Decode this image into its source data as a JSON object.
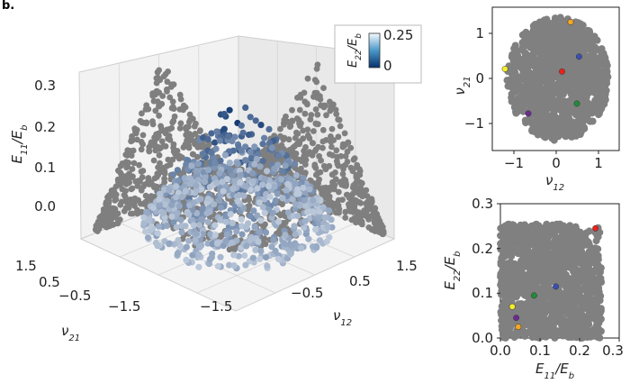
{
  "figure": {
    "panel_letter": "b."
  },
  "chart_data": [
    {
      "id": "surface3d",
      "type": "scatter",
      "projection": "3d",
      "x_axis": {
        "label_sym": "ν",
        "label_sub": "12",
        "ticks": [
          "−1.5",
          "−0.5",
          "0.5",
          "1.5"
        ],
        "range": [
          -1.5,
          1.5
        ]
      },
      "y_axis": {
        "label_sym": "ν",
        "label_sub": "21",
        "ticks": [
          "−1.5",
          "−0.5",
          "0.5",
          "1.5"
        ],
        "range": [
          -1.5,
          1.5
        ]
      },
      "z_axis": {
        "label_sym": "E",
        "label_sub": "11",
        "label_tail": "/E",
        "label_tail_sub": "b",
        "ticks": [
          "0.0",
          "0.1",
          "0.2",
          "0.3"
        ],
        "range": [
          0,
          0.3
        ]
      },
      "colorbar": {
        "label_sym": "E",
        "label_sub": "22",
        "label_tail": "/E",
        "label_tail_sub": "b",
        "max_label": "0.25",
        "min_label": "0",
        "range": [
          0,
          0.25
        ]
      },
      "projection_color": "#7f7f7f",
      "colormap": [
        "#f7fbff",
        "#08306b"
      ],
      "grid": true
    },
    {
      "id": "nu-scatter",
      "type": "scatter",
      "x_axis": {
        "label_sym": "ν",
        "label_sub": "12",
        "ticks": [
          "−1",
          "0",
          "1"
        ],
        "range": [
          -1.5,
          1.5
        ]
      },
      "y_axis": {
        "label_sym": "ν",
        "label_sub": "21",
        "ticks": [
          "−1",
          "0",
          "1"
        ],
        "range": [
          -1.45,
          1.45
        ]
      },
      "cloud_color": "#808080",
      "highlight_points": [
        {
          "x": 0.35,
          "y": 1.15,
          "color": "#f5a623"
        },
        {
          "x": 0.55,
          "y": 0.45,
          "color": "#3b4fb0"
        },
        {
          "x": 0.15,
          "y": 0.15,
          "color": "#e8221b"
        },
        {
          "x": -1.2,
          "y": 0.2,
          "color": "#f4ef2a"
        },
        {
          "x": 0.5,
          "y": -0.5,
          "color": "#228b3b"
        },
        {
          "x": -0.65,
          "y": -0.7,
          "color": "#6a2d8f"
        }
      ]
    },
    {
      "id": "E-scatter",
      "type": "scatter",
      "x_axis": {
        "label_sym": "E",
        "label_sub": "11",
        "label_tail": "/E",
        "label_tail_sub": "b",
        "ticks": [
          "0.0",
          "0.1",
          "0.2",
          "0.3"
        ],
        "range": [
          0,
          0.3
        ]
      },
      "y_axis": {
        "label_sym": "E",
        "label_sub": "22",
        "label_tail": "/E",
        "label_tail_sub": "b",
        "ticks": [
          "0.0",
          "0.1",
          "0.2",
          "0.3"
        ],
        "range": [
          0,
          0.3
        ]
      },
      "cloud_color": "#808080",
      "highlight_points": [
        {
          "x": 0.24,
          "y": 0.245,
          "color": "#e8221b"
        },
        {
          "x": 0.14,
          "y": 0.115,
          "color": "#3b4fb0"
        },
        {
          "x": 0.085,
          "y": 0.095,
          "color": "#228b3b"
        },
        {
          "x": 0.03,
          "y": 0.07,
          "color": "#f4ef2a"
        },
        {
          "x": 0.04,
          "y": 0.045,
          "color": "#6a2d8f"
        },
        {
          "x": 0.045,
          "y": 0.025,
          "color": "#f5a623"
        }
      ]
    }
  ]
}
